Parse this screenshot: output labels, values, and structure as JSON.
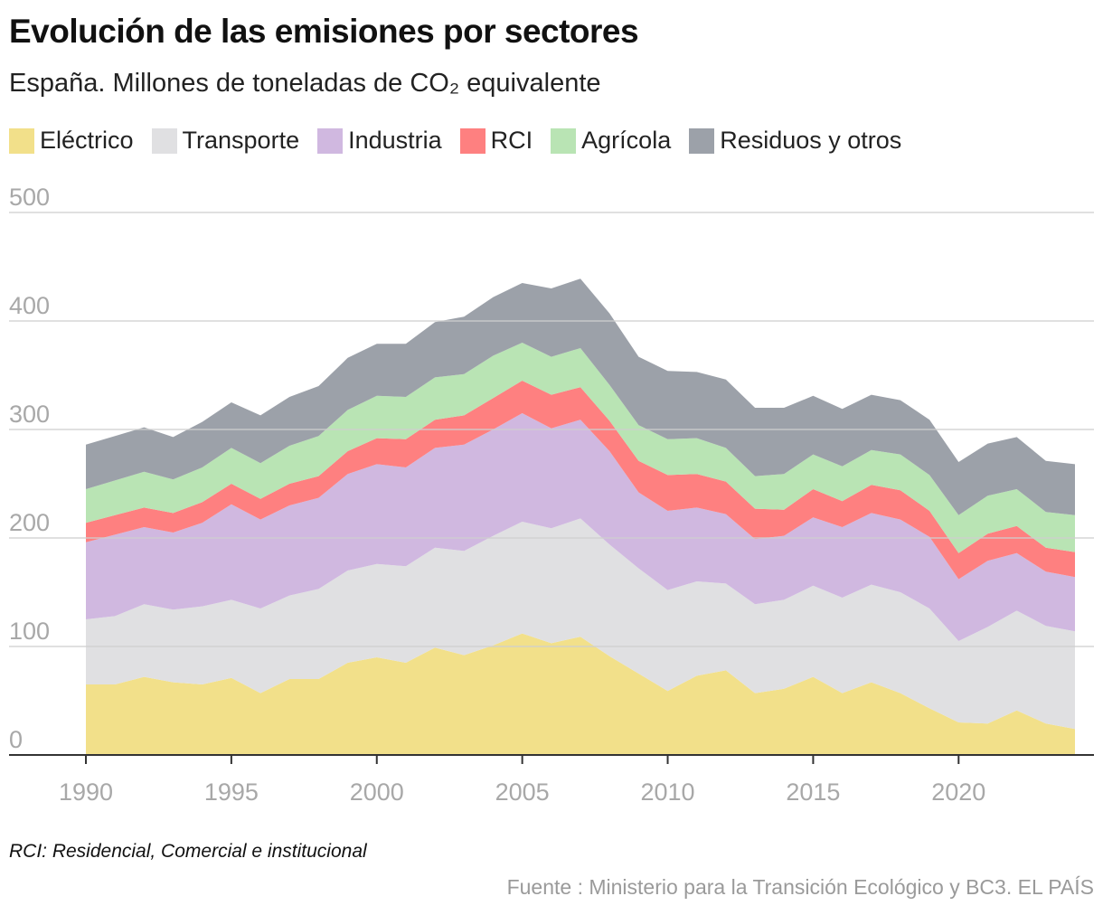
{
  "title": "Evolución de las emisiones por sectores",
  "subtitle": "España. Millones de toneladas de CO₂ equivalente",
  "note": "RCI: Residencial, Comercial e institucional",
  "source": "Fuente : Ministerio para la Transición Ecológico y BC3. EL PAÍS",
  "chart_data": {
    "type": "area",
    "stacked": true,
    "x": [
      1990,
      1991,
      1992,
      1993,
      1994,
      1995,
      1996,
      1997,
      1998,
      1999,
      2000,
      2001,
      2002,
      2003,
      2004,
      2005,
      2006,
      2007,
      2008,
      2009,
      2010,
      2011,
      2012,
      2013,
      2014,
      2015,
      2016,
      2017,
      2018,
      2019,
      2020,
      2021,
      2022,
      2023,
      2024
    ],
    "ylim": [
      0,
      500
    ],
    "yticks": [
      0,
      100,
      200,
      300,
      400,
      500
    ],
    "xticks": [
      1990,
      1995,
      2000,
      2005,
      2010,
      2015,
      2020
    ],
    "grid": true,
    "legend_position": "top",
    "series": [
      {
        "name": "Eléctrico",
        "color": "#f2e08a",
        "values": [
          65,
          65,
          72,
          67,
          65,
          71,
          57,
          70,
          70,
          85,
          90,
          85,
          99,
          92,
          101,
          112,
          103,
          109,
          91,
          75,
          59,
          73,
          78,
          57,
          61,
          72,
          57,
          67,
          57,
          43,
          30,
          29,
          41,
          29,
          24
        ]
      },
      {
        "name": "Transporte",
        "color": "#e0e0e2",
        "values": [
          60,
          63,
          67,
          67,
          72,
          72,
          78,
          77,
          83,
          85,
          86,
          89,
          92,
          96,
          101,
          103,
          106,
          109,
          103,
          97,
          93,
          87,
          80,
          82,
          82,
          84,
          88,
          90,
          93,
          92,
          75,
          89,
          92,
          90,
          90
        ]
      },
      {
        "name": "Industria",
        "color": "#d0b8e0",
        "values": [
          71,
          75,
          71,
          71,
          77,
          88,
          82,
          83,
          84,
          89,
          92,
          91,
          92,
          98,
          98,
          100,
          92,
          91,
          86,
          70,
          73,
          68,
          64,
          60,
          59,
          63,
          65,
          66,
          67,
          66,
          57,
          61,
          53,
          50,
          50
        ]
      },
      {
        "name": "RCI",
        "color": "#fe8080",
        "values": [
          18,
          18,
          18,
          18,
          19,
          19,
          19,
          20,
          20,
          21,
          24,
          26,
          26,
          27,
          29,
          30,
          31,
          30,
          28,
          29,
          33,
          31,
          30,
          28,
          24,
          26,
          24,
          26,
          27,
          24,
          24,
          25,
          25,
          22,
          23
        ]
      },
      {
        "name": "Agrícola",
        "color": "#b9e4b4",
        "values": [
          31,
          32,
          33,
          31,
          32,
          33,
          33,
          35,
          37,
          38,
          39,
          39,
          39,
          38,
          39,
          35,
          35,
          36,
          33,
          33,
          33,
          33,
          31,
          30,
          33,
          32,
          32,
          32,
          33,
          33,
          35,
          35,
          34,
          33,
          34
        ]
      },
      {
        "name": "Residuos y otros",
        "color": "#9ca1a9",
        "values": [
          41,
          41,
          41,
          39,
          42,
          42,
          44,
          45,
          46,
          48,
          48,
          49,
          51,
          53,
          54,
          55,
          63,
          64,
          66,
          63,
          63,
          61,
          63,
          63,
          61,
          54,
          53,
          51,
          50,
          51,
          49,
          48,
          48,
          47,
          47
        ]
      }
    ]
  }
}
